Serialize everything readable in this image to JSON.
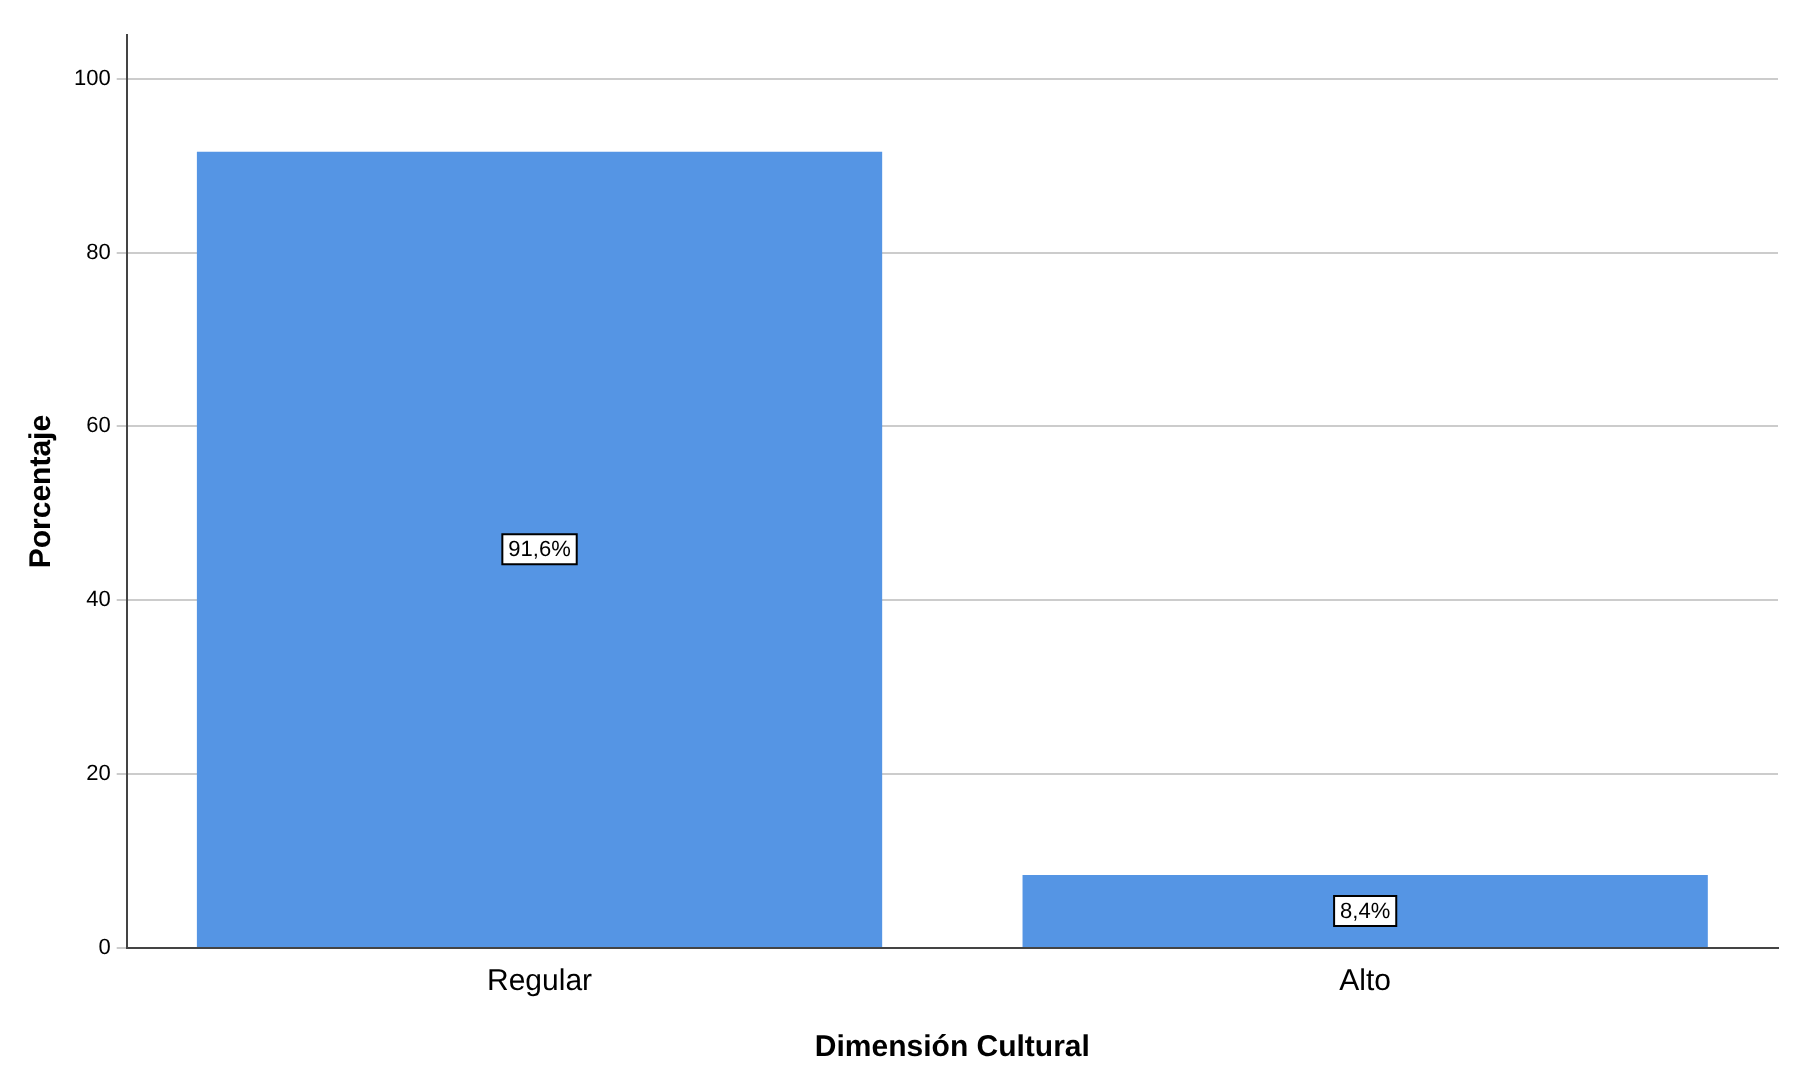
{
  "chart_data": {
    "type": "bar",
    "xlabel": "Dimensión Cultural",
    "ylabel": "Porcentaje",
    "categories": [
      "Regular",
      "Alto"
    ],
    "values": [
      91.6,
      8.4
    ],
    "value_labels": [
      "91,6%",
      "8,4%"
    ],
    "color": "#5595e4",
    "ylim": [
      0,
      105
    ],
    "yticks": [
      0,
      20,
      40,
      60,
      80,
      100
    ],
    "grid": "y",
    "legend": false
  }
}
